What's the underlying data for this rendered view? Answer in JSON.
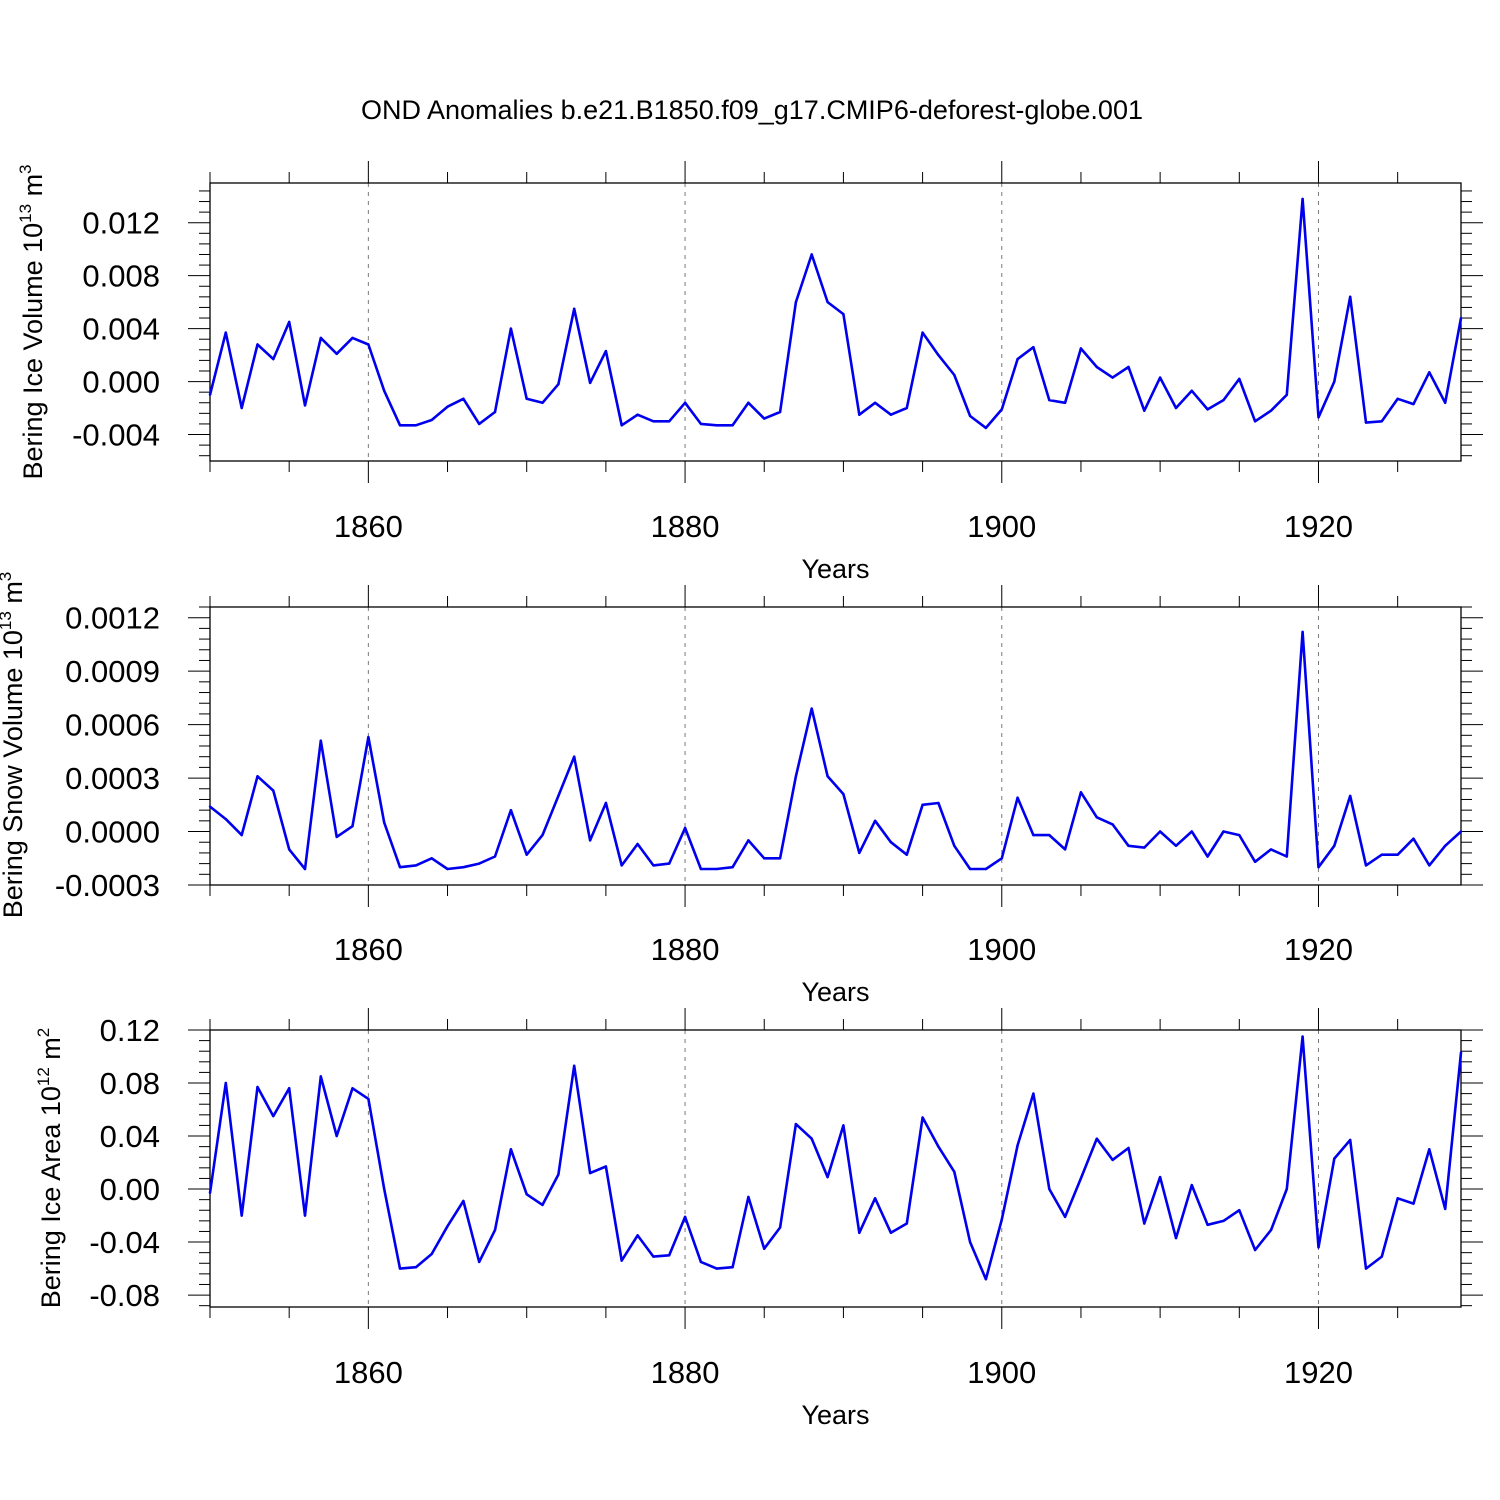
{
  "title": "OND Anomalies b.e21.B1850.f09_g17.CMIP6-deforest-globe.001",
  "line_color": "#0000ee",
  "chart_data": [
    {
      "type": "line",
      "ylabel_main": "Bering Ice Volume 10",
      "ylabel_exp": "13",
      "ylabel_unit": " m",
      "ylabel_unit_exp": "3",
      "xlabel": "Years",
      "xlim": [
        1850,
        1929
      ],
      "ylim": [
        -0.006,
        0.015
      ],
      "x_ticks": [
        1860,
        1880,
        1900,
        1920
      ],
      "x_tick_labels": [
        "1860",
        "1880",
        "1900",
        "1920"
      ],
      "y_ticks": [
        -0.004,
        0.0,
        0.004,
        0.008,
        0.012
      ],
      "y_tick_labels": [
        "-0.004",
        "0.000",
        "0.004",
        "0.008",
        "0.012"
      ],
      "x_start": 1850,
      "values": [
        -0.001,
        0.0037,
        -0.002,
        0.0028,
        0.0017,
        0.0045,
        -0.0018,
        0.0033,
        0.0021,
        0.0033,
        0.0028,
        -0.0007,
        -0.0033,
        -0.0033,
        -0.0029,
        -0.0019,
        -0.0013,
        -0.0032,
        -0.0023,
        0.004,
        -0.0013,
        -0.0016,
        -0.0002,
        0.0055,
        -0.0001,
        0.0023,
        -0.0033,
        -0.0025,
        -0.003,
        -0.003,
        -0.0016,
        -0.0032,
        -0.0033,
        -0.0033,
        -0.0016,
        -0.0028,
        -0.0023,
        0.006,
        0.0096,
        0.006,
        0.0051,
        -0.0025,
        -0.0016,
        -0.0025,
        -0.002,
        0.0037,
        0.002,
        0.0005,
        -0.0026,
        -0.0035,
        -0.0021,
        0.0017,
        0.0026,
        -0.0014,
        -0.0016,
        0.0025,
        0.0011,
        0.0003,
        0.0011,
        -0.0022,
        0.0003,
        -0.002,
        -0.0007,
        -0.0021,
        -0.0014,
        0.0002,
        -0.003,
        -0.0022,
        -0.001,
        0.0138,
        -0.0027,
        0.0,
        0.0064,
        -0.0031,
        -0.003,
        -0.0013,
        -0.0017,
        0.0007,
        -0.0016,
        0.0048
      ]
    },
    {
      "type": "line",
      "ylabel_main": "Bering Snow Volume 10",
      "ylabel_exp": "13",
      "ylabel_unit": " m",
      "ylabel_unit_exp": "3",
      "xlabel": "Years",
      "xlim": [
        1850,
        1929
      ],
      "ylim": [
        -0.0003,
        0.00126
      ],
      "x_ticks": [
        1860,
        1880,
        1900,
        1920
      ],
      "x_tick_labels": [
        "1860",
        "1880",
        "1900",
        "1920"
      ],
      "y_ticks": [
        -0.0003,
        0.0,
        0.0003,
        0.0006,
        0.0009,
        0.0012
      ],
      "y_tick_labels": [
        "-0.0003",
        "0.0000",
        "0.0003",
        "0.0006",
        "0.0009",
        "0.0012"
      ],
      "x_start": 1850,
      "values": [
        0.00014,
        7e-05,
        -2e-05,
        0.00031,
        0.00023,
        -0.0001,
        -0.00021,
        0.00051,
        -3e-05,
        3e-05,
        0.00053,
        5e-05,
        -0.0002,
        -0.00019,
        -0.00015,
        -0.00021,
        -0.0002,
        -0.00018,
        -0.00014,
        0.00012,
        -0.00013,
        -2e-05,
        0.0002,
        0.00042,
        -5e-05,
        0.00016,
        -0.00019,
        -7e-05,
        -0.00019,
        -0.00018,
        2e-05,
        -0.00021,
        -0.00021,
        -0.0002,
        -5e-05,
        -0.00015,
        -0.00015,
        0.00031,
        0.00069,
        0.00031,
        0.00021,
        -0.00012,
        6e-05,
        -6e-05,
        -0.00013,
        0.00015,
        0.00016,
        -8e-05,
        -0.00021,
        -0.00021,
        -0.00015,
        0.00019,
        -2e-05,
        -2e-05,
        -0.0001,
        0.00022,
        8e-05,
        4e-05,
        -8e-05,
        -9e-05,
        0.0,
        -8e-05,
        0.0,
        -0.00014,
        0.0,
        -2e-05,
        -0.00017,
        -0.0001,
        -0.00014,
        0.00112,
        -0.0002,
        -8e-05,
        0.0002,
        -0.00019,
        -0.00013,
        -0.00013,
        -4e-05,
        -0.00019,
        -8e-05,
        0.0
      ]
    },
    {
      "type": "line",
      "ylabel_main": "Bering Ice Area 10",
      "ylabel_exp": "12",
      "ylabel_unit": " m",
      "ylabel_unit_exp": "2",
      "xlabel": "Years",
      "xlim": [
        1850,
        1929
      ],
      "ylim": [
        -0.089,
        0.12
      ],
      "x_ticks": [
        1860,
        1880,
        1900,
        1920
      ],
      "x_tick_labels": [
        "1860",
        "1880",
        "1900",
        "1920"
      ],
      "y_ticks": [
        -0.08,
        -0.04,
        0.0,
        0.04,
        0.08,
        0.12
      ],
      "y_tick_labels": [
        "-0.08",
        "-0.04",
        "0.00",
        "0.04",
        "0.08",
        "0.12"
      ],
      "x_start": 1850,
      "values": [
        -0.003,
        0.08,
        -0.02,
        0.077,
        0.055,
        0.076,
        -0.02,
        0.085,
        0.04,
        0.076,
        0.068,
        0.0,
        -0.06,
        -0.059,
        -0.049,
        -0.028,
        -0.009,
        -0.055,
        -0.031,
        0.03,
        -0.004,
        -0.012,
        0.011,
        0.093,
        0.012,
        0.017,
        -0.054,
        -0.035,
        -0.051,
        -0.05,
        -0.021,
        -0.055,
        -0.06,
        -0.059,
        -0.006,
        -0.045,
        -0.029,
        0.049,
        0.038,
        0.009,
        0.048,
        -0.033,
        -0.007,
        -0.033,
        -0.026,
        0.054,
        0.032,
        0.013,
        -0.04,
        -0.068,
        -0.023,
        0.033,
        0.072,
        0.0,
        -0.021,
        0.008,
        0.038,
        0.022,
        0.031,
        -0.026,
        0.009,
        -0.037,
        0.003,
        -0.027,
        -0.024,
        -0.016,
        -0.046,
        -0.031,
        0.0,
        0.115,
        -0.044,
        0.023,
        0.037,
        -0.06,
        -0.051,
        -0.007,
        -0.011,
        0.03,
        -0.015,
        0.103
      ]
    }
  ]
}
